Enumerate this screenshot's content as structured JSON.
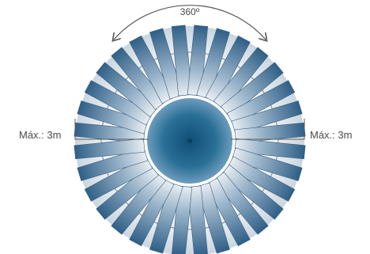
{
  "diagram": {
    "angle_label": "360º",
    "max_left_label": "Máx.: 3m",
    "max_right_label": "Máx.: 3m",
    "spoke_count": 32
  },
  "colors": {
    "spoke_dark": "#2f5f87",
    "spoke_light": "#e9eef3",
    "center_glow": "#2a6f96",
    "center_dark": "#0f4e77",
    "ring_line": "#6b6b6b",
    "arrow": "#5b5b5b",
    "text": "#4a4a4a"
  }
}
